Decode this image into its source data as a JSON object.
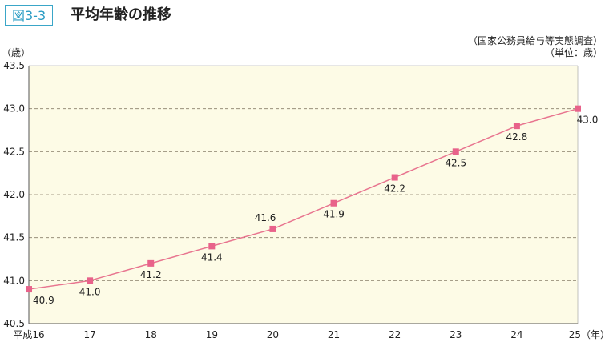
{
  "figure": {
    "label": "図3-3",
    "title": "平均年齢の推移",
    "source": "（国家公務員給与等実態調査）",
    "unit": "（単位：歳）"
  },
  "colors": {
    "plot_bg": "#fdfbe6",
    "line": "#e8748f",
    "marker": "#e8628a",
    "grid": "#8a7f6a",
    "label_border": "#3aa6c8"
  },
  "chart_data": {
    "type": "line",
    "title": "平均年齢の推移",
    "ylabel": "（歳）",
    "xlabel": "（年）",
    "categories": [
      "平成16",
      "17",
      "18",
      "19",
      "20",
      "21",
      "22",
      "23",
      "24",
      "25"
    ],
    "series": [
      {
        "values": [
          40.9,
          41.0,
          41.2,
          41.4,
          41.6,
          41.9,
          42.2,
          42.5,
          42.8,
          43.0
        ]
      }
    ],
    "data_labels": [
      "40.9",
      "41.0",
      "41.2",
      "41.4",
      "41.6",
      "41.9",
      "42.2",
      "42.5",
      "42.8",
      "43.0"
    ],
    "ylim": [
      40.5,
      43.5
    ],
    "yticks": [
      "40.5",
      "41.0",
      "41.5",
      "42.0",
      "42.5",
      "43.0",
      "43.5"
    ],
    "grid": "horizontal dashed"
  }
}
